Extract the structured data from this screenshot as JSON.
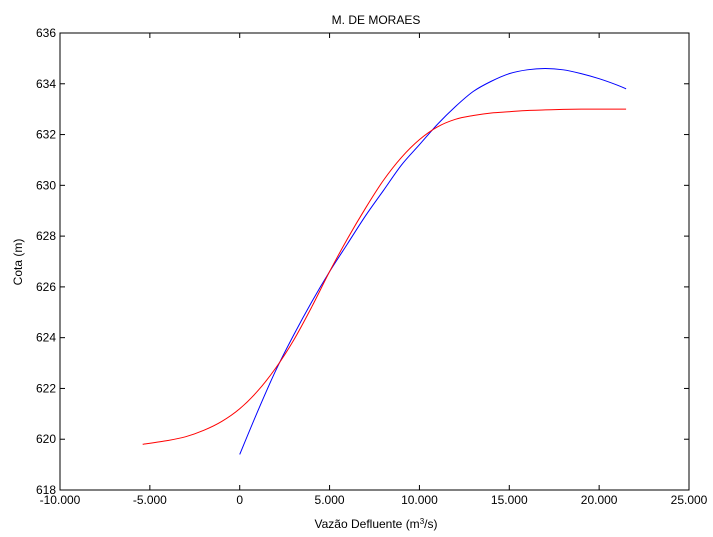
{
  "chart_data": {
    "type": "line",
    "title": "M. DE MORAES",
    "xlabel": {
      "prefix": "Vazão Defluente (m",
      "sup": "3",
      "suffix": "/s)"
    },
    "ylabel": "Cota (m)",
    "xlim": [
      -10000,
      25000
    ],
    "ylim": [
      618,
      636
    ],
    "x_ticks": [
      -10000,
      -5000,
      0,
      5000,
      10000,
      15000,
      20000,
      25000
    ],
    "x_tick_labels": [
      "-10.000",
      "-5.000",
      "0",
      "5.000",
      "10.000",
      "15.000",
      "20.000",
      "25.000"
    ],
    "y_ticks": [
      618,
      620,
      622,
      624,
      626,
      628,
      630,
      632,
      634,
      636
    ],
    "y_tick_labels": [
      "618",
      "620",
      "622",
      "624",
      "626",
      "628",
      "630",
      "632",
      "634",
      "636"
    ],
    "grid": false,
    "series": [
      {
        "color": "#0000ff",
        "x": [
          0,
          1000,
          2000,
          3000,
          4000,
          5000,
          6000,
          7000,
          8000,
          9000,
          10000,
          11000,
          12000,
          13000,
          14000,
          15000,
          16000,
          17000,
          18000,
          19000,
          20000,
          21000,
          21500
        ],
        "y": [
          619.4,
          621.1,
          622.7,
          624.1,
          625.4,
          626.6,
          627.7,
          628.8,
          629.8,
          630.8,
          631.6,
          632.4,
          633.1,
          633.7,
          634.1,
          634.4,
          634.55,
          634.6,
          634.55,
          634.4,
          634.2,
          633.95,
          633.8
        ]
      },
      {
        "color": "#ff0000",
        "x": [
          -5400,
          -4000,
          -3000,
          -2000,
          -1000,
          0,
          1000,
          2000,
          3000,
          4000,
          5000,
          6000,
          7000,
          8000,
          9000,
          10000,
          11000,
          12000,
          13000,
          14000,
          15000,
          16000,
          17000,
          18000,
          19000,
          20000,
          21500
        ],
        "y": [
          619.8,
          619.95,
          620.1,
          620.35,
          620.7,
          621.2,
          621.9,
          622.8,
          623.9,
          625.2,
          626.6,
          627.9,
          629.1,
          630.2,
          631.1,
          631.8,
          632.3,
          632.6,
          632.75,
          632.85,
          632.9,
          632.95,
          632.97,
          632.99,
          633.0,
          633.0,
          633.0
        ]
      }
    ]
  }
}
